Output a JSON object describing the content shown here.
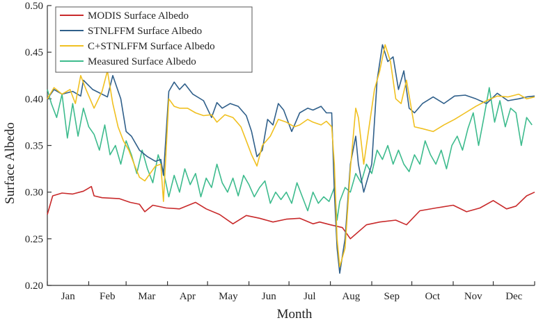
{
  "chart_data": {
    "type": "line",
    "xlabel": "Month",
    "ylabel": "Surface Albedo",
    "ylim": [
      0.2,
      0.5
    ],
    "xlim": [
      1,
      366
    ],
    "y_ticks": [
      "0.20",
      "0.25",
      "0.30",
      "0.35",
      "0.40",
      "0.45",
      "0.50"
    ],
    "month_labels": [
      "Jan",
      "Feb",
      "Mar",
      "Apr",
      "May",
      "Jun",
      "Jul",
      "Aug",
      "Sep",
      "Oct",
      "Nov",
      "Dec"
    ],
    "legend_position": "top-left",
    "grid": false,
    "series": [
      {
        "name": "MODIS Surface Albedo",
        "color": "#c8292a",
        "x": [
          1,
          5,
          12,
          20,
          28,
          34,
          36,
          42,
          55,
          63,
          70,
          74,
          80,
          90,
          100,
          112,
          120,
          130,
          140,
          150,
          160,
          170,
          180,
          190,
          200,
          205,
          213,
          222,
          228,
          240,
          250,
          262,
          270,
          280,
          292,
          305,
          315,
          325,
          335,
          345,
          352,
          360,
          366
        ],
        "y": [
          0.276,
          0.296,
          0.299,
          0.298,
          0.301,
          0.306,
          0.296,
          0.294,
          0.293,
          0.289,
          0.287,
          0.279,
          0.286,
          0.283,
          0.282,
          0.289,
          0.282,
          0.276,
          0.266,
          0.275,
          0.272,
          0.268,
          0.271,
          0.272,
          0.266,
          0.268,
          0.265,
          0.262,
          0.25,
          0.265,
          0.268,
          0.27,
          0.265,
          0.28,
          0.283,
          0.286,
          0.279,
          0.283,
          0.291,
          0.282,
          0.285,
          0.296,
          0.3
        ]
      },
      {
        "name": "STNLFFM Surface Albedo",
        "color": "#2f5f8a",
        "x": [
          1,
          6,
          12,
          20,
          26,
          28,
          35,
          42,
          46,
          50,
          56,
          60,
          64,
          70,
          76,
          82,
          86,
          88,
          92,
          96,
          100,
          104,
          110,
          118,
          124,
          128,
          132,
          138,
          144,
          150,
          154,
          158,
          162,
          166,
          170,
          174,
          178,
          184,
          190,
          196,
          200,
          206,
          210,
          214,
          216,
          218,
          220,
          224,
          228,
          232,
          234,
          238,
          244,
          248,
          252,
          256,
          260,
          264,
          268,
          272,
          276,
          282,
          290,
          298,
          306,
          314,
          322,
          330,
          338,
          346,
          354,
          360,
          366
        ],
        "y": [
          0.4,
          0.41,
          0.405,
          0.408,
          0.403,
          0.42,
          0.41,
          0.405,
          0.402,
          0.425,
          0.4,
          0.365,
          0.36,
          0.345,
          0.338,
          0.333,
          0.335,
          0.318,
          0.408,
          0.418,
          0.41,
          0.416,
          0.405,
          0.398,
          0.38,
          0.396,
          0.39,
          0.395,
          0.392,
          0.382,
          0.365,
          0.338,
          0.345,
          0.378,
          0.372,
          0.395,
          0.388,
          0.365,
          0.385,
          0.39,
          0.388,
          0.392,
          0.385,
          0.385,
          0.3,
          0.24,
          0.213,
          0.25,
          0.33,
          0.36,
          0.33,
          0.3,
          0.33,
          0.42,
          0.458,
          0.44,
          0.445,
          0.41,
          0.43,
          0.39,
          0.385,
          0.395,
          0.402,
          0.395,
          0.403,
          0.404,
          0.4,
          0.395,
          0.406,
          0.398,
          0.4,
          0.402,
          0.403
        ]
      },
      {
        "name": "C+STNLFFM Surface Albedo",
        "color": "#f0c020",
        "x": [
          1,
          6,
          12,
          18,
          22,
          26,
          30,
          36,
          42,
          46,
          50,
          54,
          58,
          62,
          66,
          70,
          74,
          78,
          82,
          86,
          88,
          92,
          96,
          100,
          106,
          112,
          118,
          124,
          128,
          134,
          140,
          146,
          150,
          154,
          158,
          162,
          168,
          174,
          180,
          186,
          190,
          196,
          200,
          206,
          210,
          214,
          216,
          218,
          220,
          224,
          228,
          232,
          234,
          238,
          242,
          246,
          250,
          254,
          258,
          262,
          266,
          270,
          276,
          282,
          290,
          298,
          306,
          314,
          322,
          330,
          338,
          346,
          354,
          360,
          366
        ],
        "y": [
          0.4,
          0.412,
          0.405,
          0.41,
          0.395,
          0.425,
          0.41,
          0.39,
          0.408,
          0.43,
          0.395,
          0.37,
          0.355,
          0.345,
          0.33,
          0.316,
          0.312,
          0.32,
          0.328,
          0.33,
          0.29,
          0.4,
          0.392,
          0.39,
          0.39,
          0.385,
          0.382,
          0.383,
          0.375,
          0.383,
          0.38,
          0.37,
          0.355,
          0.34,
          0.328,
          0.35,
          0.36,
          0.378,
          0.375,
          0.37,
          0.372,
          0.378,
          0.375,
          0.372,
          0.376,
          0.37,
          0.33,
          0.25,
          0.22,
          0.24,
          0.325,
          0.39,
          0.38,
          0.33,
          0.37,
          0.41,
          0.43,
          0.458,
          0.44,
          0.4,
          0.395,
          0.42,
          0.37,
          0.368,
          0.365,
          0.372,
          0.378,
          0.385,
          0.392,
          0.398,
          0.403,
          0.402,
          0.405,
          0.4,
          0.402
        ]
      },
      {
        "name": "Measured Surface Albedo",
        "color": "#3dbb8d",
        "x": [
          1,
          4,
          8,
          12,
          16,
          20,
          24,
          28,
          32,
          36,
          40,
          44,
          48,
          52,
          56,
          60,
          64,
          68,
          72,
          76,
          80,
          84,
          88,
          92,
          96,
          100,
          104,
          108,
          112,
          116,
          120,
          124,
          128,
          132,
          136,
          140,
          144,
          148,
          152,
          156,
          160,
          164,
          168,
          172,
          176,
          180,
          184,
          188,
          192,
          196,
          200,
          204,
          208,
          212,
          216,
          218,
          220,
          224,
          228,
          232,
          236,
          240,
          244,
          248,
          252,
          256,
          260,
          264,
          268,
          272,
          276,
          280,
          284,
          288,
          292,
          296,
          300,
          304,
          308,
          312,
          316,
          320,
          324,
          328,
          332,
          336,
          340,
          344,
          348,
          352,
          356,
          360,
          364
        ],
        "y": [
          0.41,
          0.395,
          0.38,
          0.405,
          0.358,
          0.395,
          0.36,
          0.39,
          0.37,
          0.362,
          0.345,
          0.372,
          0.34,
          0.35,
          0.33,
          0.355,
          0.34,
          0.32,
          0.345,
          0.325,
          0.31,
          0.34,
          0.322,
          0.295,
          0.318,
          0.3,
          0.325,
          0.308,
          0.32,
          0.295,
          0.315,
          0.305,
          0.33,
          0.31,
          0.3,
          0.315,
          0.296,
          0.318,
          0.308,
          0.295,
          0.305,
          0.312,
          0.288,
          0.3,
          0.292,
          0.3,
          0.288,
          0.31,
          0.295,
          0.28,
          0.3,
          0.288,
          0.295,
          0.29,
          0.305,
          0.27,
          0.29,
          0.305,
          0.3,
          0.32,
          0.31,
          0.33,
          0.32,
          0.345,
          0.335,
          0.35,
          0.33,
          0.345,
          0.33,
          0.322,
          0.34,
          0.33,
          0.355,
          0.34,
          0.33,
          0.345,
          0.325,
          0.35,
          0.36,
          0.345,
          0.368,
          0.385,
          0.35,
          0.38,
          0.412,
          0.375,
          0.398,
          0.37,
          0.39,
          0.385,
          0.35,
          0.38,
          0.372
        ]
      }
    ]
  }
}
